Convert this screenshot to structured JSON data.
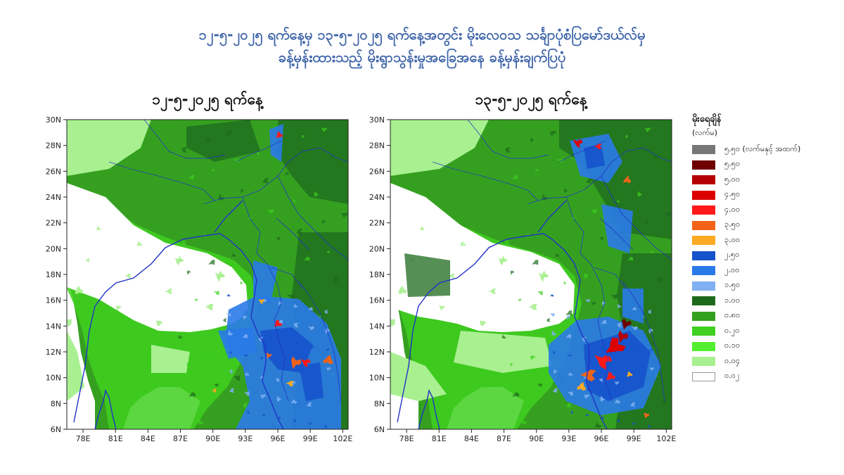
{
  "title": {
    "line1": "၁၂-၅-၂၀၂၅ ရက်နေ့မှ ၁၃-၅-၂၀၂၅ ရက်နေ့အတွင်း မိုးလေဝသ သင်္ချာပုံစံပြမော်ဒယ်လ်မှ",
    "line2": "ခန့်မှန်းထားသည့် မိုးရွာသွန်းမှုအခြေအနေ ခန့်မှန်းချက်ပြပုံ"
  },
  "maps": [
    {
      "date_label": "၁၂-၅-၂၀၂၅ ရက်နေ့",
      "lat_ticks": [
        "6N",
        "8N",
        "10N",
        "12N",
        "14N",
        "16N",
        "18N",
        "20N",
        "22N",
        "24N",
        "26N",
        "28N",
        "30N"
      ],
      "lon_ticks": [
        "78E",
        "81E",
        "84E",
        "87E",
        "90E",
        "93E",
        "96E",
        "99E",
        "102E"
      ],
      "lat_range": [
        6,
        30
      ],
      "lon_range": [
        76.5,
        102.5
      ]
    },
    {
      "date_label": "၁၃-၅-၂၀၂၅ ရက်နေ့",
      "lat_ticks": [
        "6N",
        "8N",
        "10N",
        "12N",
        "14N",
        "16N",
        "18N",
        "20N",
        "22N",
        "24N",
        "26N",
        "28N",
        "30N"
      ],
      "lon_ticks": [
        "78E",
        "81E",
        "84E",
        "87E",
        "90E",
        "93E",
        "96E",
        "99E",
        "102E"
      ],
      "lat_range": [
        6,
        30
      ],
      "lon_range": [
        76.5,
        102.5
      ]
    }
  ],
  "legend": {
    "title": "မိုးရေချိန်",
    "unit": "(လက်မ)",
    "items": [
      {
        "label": "၅.၅၀ (လက်မနှင့် အထက်)",
        "color": "#777777"
      },
      {
        "label": "၅.၅၀",
        "color": "#6e0000"
      },
      {
        "label": "၅.၀၀",
        "color": "#b40000"
      },
      {
        "label": "၄.၅၀",
        "color": "#dc0000"
      },
      {
        "label": "၄.၀၀",
        "color": "#ff1a1a"
      },
      {
        "label": "၃.၅၀",
        "color": "#f26318"
      },
      {
        "label": "၃.၀၀",
        "color": "#ffaa22"
      },
      {
        "label": "၂.၅၀",
        "color": "#1552cc"
      },
      {
        "label": "၂.၀၀",
        "color": "#2a7ae8"
      },
      {
        "label": "၁.၅၀",
        "color": "#80b0f2"
      },
      {
        "label": "၁.၀၀",
        "color": "#1d6a1d"
      },
      {
        "label": "၀.၈၀",
        "color": "#35a020"
      },
      {
        "label": "၀.၂၀",
        "color": "#3fd020"
      },
      {
        "label": "၀.၁၀",
        "color": "#55ee30"
      },
      {
        "label": "၀.၀၄",
        "color": "#a8f090"
      },
      {
        "label": "၀.၀၂",
        "color": "#ffffff"
      }
    ]
  }
}
